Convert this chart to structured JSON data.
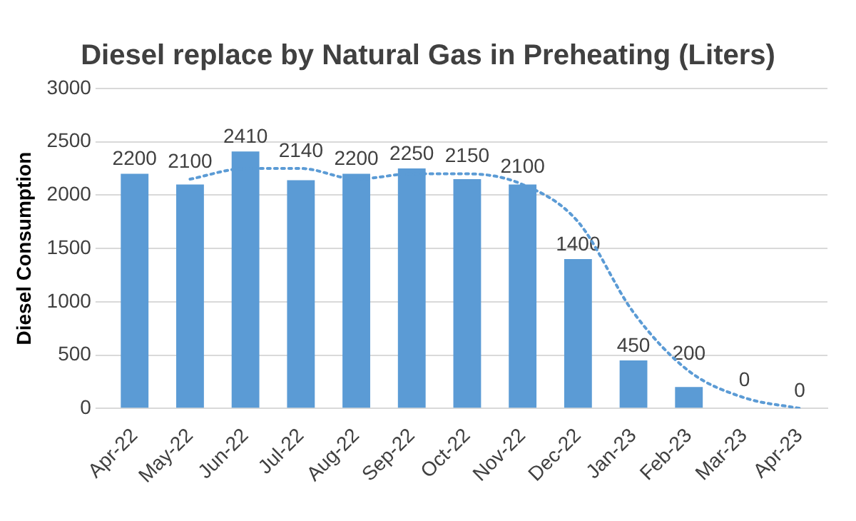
{
  "chart_data": {
    "type": "bar",
    "title": "Diesel replace by Natural Gas in Preheating (Liters)",
    "ylabel": "Diesel Consumption",
    "categories": [
      "Apr-22",
      "May-22",
      "Jun-22",
      "Jul-22",
      "Aug-22",
      "Sep-22",
      "Oct-22",
      "Nov-22",
      "Dec-22",
      "Jan-23",
      "Feb-23",
      "Mar-23",
      "Apr-23"
    ],
    "series": [
      {
        "color": "#5b9bd5",
        "values": [
          2200,
          2100,
          2410,
          2140,
          2200,
          2250,
          2150,
          2100,
          1400,
          450,
          200,
          0,
          0
        ],
        "value_labels": [
          "2200",
          "2100",
          "2410",
          "2140",
          "2200",
          "2250",
          "2150",
          "2100",
          "1400",
          "450",
          "200",
          "0",
          "0"
        ]
      },
      {
        "type": "line",
        "color": "#5b9bd5",
        "line_style": "dotted",
        "marker": "none",
        "values": [
          null,
          2150,
          2250,
          2250,
          2150,
          2200,
          2200,
          2100,
          1750,
          900,
          350,
          100,
          0
        ]
      }
    ],
    "ylim": [
      0,
      3000
    ],
    "yticks": [
      0,
      500,
      1000,
      1500,
      2000,
      2500,
      3000
    ],
    "grid": "y",
    "legend": false
  }
}
